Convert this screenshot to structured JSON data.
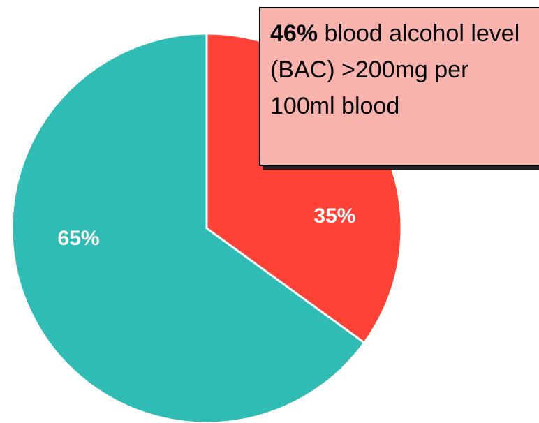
{
  "chart_data": {
    "type": "pie",
    "categories": [
      null,
      null
    ],
    "values": [
      35,
      65
    ],
    "value_labels": [
      "35%",
      "65%"
    ],
    "colors": [
      "#ff4136",
      "#2ebcb4"
    ],
    "start_angle": 0,
    "direction": "clockwise",
    "annotation": {
      "bold": "46%",
      "text": "blood alcohol level (BAC) >200mg per 100ml blood"
    }
  }
}
